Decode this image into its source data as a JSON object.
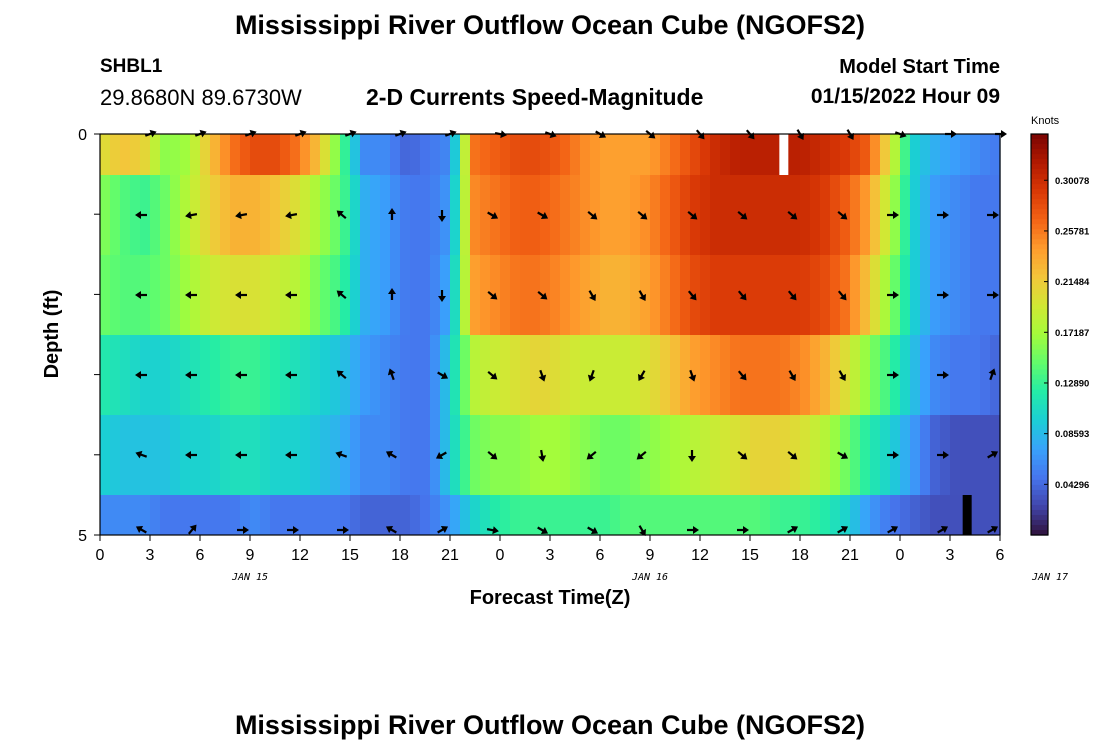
{
  "page": {
    "title": "Mississippi River Outflow Ocean Cube (NGOFS2)",
    "title_repeat": "Mississippi River Outflow Ocean Cube (NGOFS2)",
    "station_id": "SHBL1",
    "coordinates": "29.8680N  89.6730W",
    "subtitle": "2-D Currents Speed-Magnitude",
    "model_start_label": "Model Start Time",
    "model_start_value": "01/15/2022 Hour 09"
  },
  "chart_data": {
    "type": "heatmap",
    "title": "2-D Currents Speed-Magnitude",
    "xlabel": "Forecast Time(Z)",
    "ylabel": "Depth (ft)",
    "x_ticks": [
      "0",
      "3",
      "6",
      "9",
      "12",
      "15",
      "18",
      "21",
      "0",
      "3",
      "6",
      "9",
      "12",
      "15",
      "18",
      "21",
      "0",
      "3",
      "6"
    ],
    "date_labels": [
      {
        "label": "JAN 15",
        "hour": 9
      },
      {
        "label": "JAN 16",
        "hour": 33
      },
      {
        "label": "JAN 17",
        "hour": 57
      }
    ],
    "x_range_hours": [
      0,
      54
    ],
    "y_ticks": [
      "0",
      "5"
    ],
    "y_range": [
      0,
      5
    ],
    "colorbar": {
      "unit": "Knots",
      "ticks": [
        "0.30078",
        "0.25781",
        "0.21484",
        "0.17187",
        "0.12890",
        "0.08593",
        "0.04296"
      ],
      "range": [
        0,
        0.34
      ]
    },
    "depth_layers": [
      0.25,
      1,
      2,
      3,
      4,
      4.75
    ],
    "colors": {
      "c0": "#30123b",
      "c1": "#4145ab",
      "c2": "#4675ed",
      "c3": "#39a2fc",
      "c4": "#1bcfd4",
      "c5": "#24eca6",
      "c6": "#61fc6c",
      "c7": "#a4fc3b",
      "c8": "#d1e834",
      "c9": "#f3c63a",
      "c10": "#fe9b2d",
      "c11": "#f36315",
      "c12": "#d93806",
      "c13": "#b11901",
      "c14": "#7a0402"
    },
    "speed_knots": [
      [
        0.2,
        0.22,
        0.21,
        0.16,
        0.17,
        0.22,
        0.26,
        0.28,
        0.28,
        0.26,
        0.22,
        0.14,
        0.06,
        0.06,
        0.04,
        0.05,
        0.06,
        0.26,
        0.27,
        0.28,
        0.28,
        0.27,
        0.25,
        0.24,
        0.24,
        0.24,
        0.26,
        0.28,
        0.3,
        0.31,
        0.31,
        0.31,
        0.31,
        0.3,
        0.29,
        0.27,
        0.2,
        0.1,
        0.08,
        0.07,
        0.06,
        0.05
      ],
      [
        0.16,
        0.14,
        0.13,
        0.15,
        0.18,
        0.21,
        0.23,
        0.23,
        0.22,
        0.2,
        0.17,
        0.14,
        0.08,
        0.07,
        0.05,
        0.05,
        0.07,
        0.25,
        0.26,
        0.27,
        0.27,
        0.26,
        0.25,
        0.24,
        0.24,
        0.25,
        0.27,
        0.29,
        0.3,
        0.3,
        0.3,
        0.3,
        0.3,
        0.29,
        0.27,
        0.24,
        0.18,
        0.1,
        0.07,
        0.06,
        0.05,
        0.05
      ],
      [
        0.15,
        0.14,
        0.14,
        0.15,
        0.17,
        0.19,
        0.2,
        0.2,
        0.19,
        0.18,
        0.15,
        0.13,
        0.08,
        0.07,
        0.05,
        0.05,
        0.08,
        0.24,
        0.25,
        0.26,
        0.26,
        0.25,
        0.24,
        0.23,
        0.23,
        0.24,
        0.26,
        0.28,
        0.29,
        0.29,
        0.29,
        0.29,
        0.29,
        0.28,
        0.26,
        0.22,
        0.16,
        0.1,
        0.07,
        0.06,
        0.05,
        0.05
      ],
      [
        0.12,
        0.11,
        0.1,
        0.1,
        0.11,
        0.12,
        0.13,
        0.13,
        0.12,
        0.11,
        0.1,
        0.09,
        0.07,
        0.06,
        0.05,
        0.05,
        0.1,
        0.18,
        0.19,
        0.2,
        0.21,
        0.2,
        0.19,
        0.19,
        0.19,
        0.2,
        0.22,
        0.24,
        0.25,
        0.26,
        0.26,
        0.26,
        0.25,
        0.23,
        0.2,
        0.16,
        0.13,
        0.09,
        0.06,
        0.05,
        0.05,
        0.04
      ],
      [
        0.1,
        0.09,
        0.09,
        0.09,
        0.1,
        0.1,
        0.11,
        0.11,
        0.1,
        0.1,
        0.09,
        0.08,
        0.06,
        0.06,
        0.05,
        0.05,
        0.1,
        0.15,
        0.16,
        0.16,
        0.17,
        0.17,
        0.16,
        0.15,
        0.15,
        0.16,
        0.17,
        0.18,
        0.19,
        0.2,
        0.21,
        0.21,
        0.2,
        0.18,
        0.15,
        0.12,
        0.1,
        0.07,
        0.04,
        0.03,
        0.03,
        0.03
      ],
      [
        0.06,
        0.06,
        0.06,
        0.05,
        0.05,
        0.05,
        0.05,
        0.06,
        0.05,
        0.05,
        0.05,
        0.05,
        0.04,
        0.04,
        0.04,
        0.05,
        0.07,
        0.1,
        0.12,
        0.13,
        0.13,
        0.13,
        0.13,
        0.13,
        0.14,
        0.14,
        0.14,
        0.14,
        0.14,
        0.14,
        0.14,
        0.13,
        0.13,
        0.12,
        0.1,
        0.07,
        0.05,
        0.04,
        0.03,
        0.03,
        0.03,
        0.03
      ]
    ],
    "dropouts": [
      {
        "hour": 41,
        "depth_row": 0,
        "color": "#ffffff"
      },
      {
        "hour": 52,
        "depth_row": 5,
        "color": "#000000"
      }
    ],
    "arrow_hours": [
      3,
      6,
      9,
      12,
      15,
      18,
      21,
      24,
      27,
      30,
      33,
      36,
      39,
      42,
      45,
      48,
      51,
      54
    ],
    "direction_deg": [
      [
        70,
        70,
        70,
        70,
        70,
        70,
        70,
        100,
        110,
        120,
        130,
        140,
        140,
        150,
        150,
        110,
        90,
        90
      ],
      [
        270,
        260,
        260,
        260,
        310,
        0,
        180,
        120,
        120,
        130,
        130,
        130,
        130,
        130,
        130,
        90,
        90,
        90
      ],
      [
        270,
        270,
        270,
        270,
        310,
        0,
        180,
        130,
        130,
        150,
        150,
        140,
        140,
        140,
        140,
        90,
        90,
        90
      ],
      [
        270,
        270,
        270,
        270,
        310,
        340,
        120,
        130,
        160,
        200,
        210,
        160,
        140,
        150,
        150,
        90,
        90,
        20
      ],
      [
        290,
        270,
        270,
        270,
        290,
        300,
        240,
        130,
        170,
        230,
        230,
        180,
        130,
        130,
        120,
        90,
        90,
        60
      ],
      [
        300,
        40,
        90,
        90,
        90,
        300,
        60,
        100,
        120,
        120,
        150,
        90,
        90,
        60,
        60,
        60,
        60,
        60
      ]
    ]
  }
}
